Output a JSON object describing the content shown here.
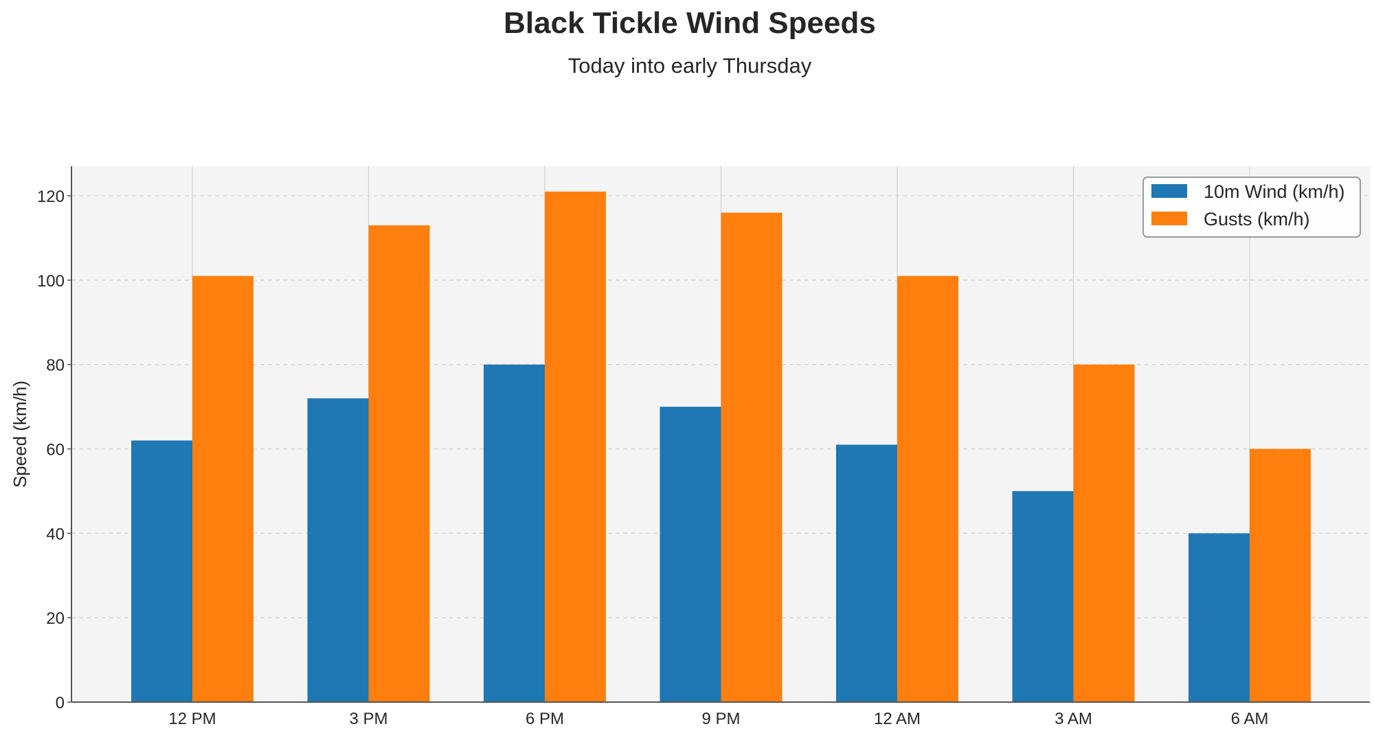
{
  "chart_data": {
    "type": "bar",
    "title": "Black Tickle Wind Speeds",
    "subtitle": "Today into early Thursday",
    "xlabel": "",
    "ylabel": "Speed (km/h)",
    "categories": [
      "12 PM",
      "3 PM",
      "6 PM",
      "9 PM",
      "12 AM",
      "3 AM",
      "6 AM"
    ],
    "series": [
      {
        "name": "10m Wind (km/h)",
        "color": "#1f77b4",
        "values": [
          62,
          72,
          80,
          70,
          61,
          50,
          40
        ]
      },
      {
        "name": "Gusts (km/h)",
        "color": "#ff7f0e",
        "values": [
          101,
          113,
          121,
          116,
          101,
          80,
          60
        ]
      }
    ],
    "ylim": [
      0,
      127
    ],
    "yticks": [
      0,
      20,
      40,
      60,
      80,
      100,
      120
    ],
    "grid": true,
    "legend": "top-right"
  }
}
